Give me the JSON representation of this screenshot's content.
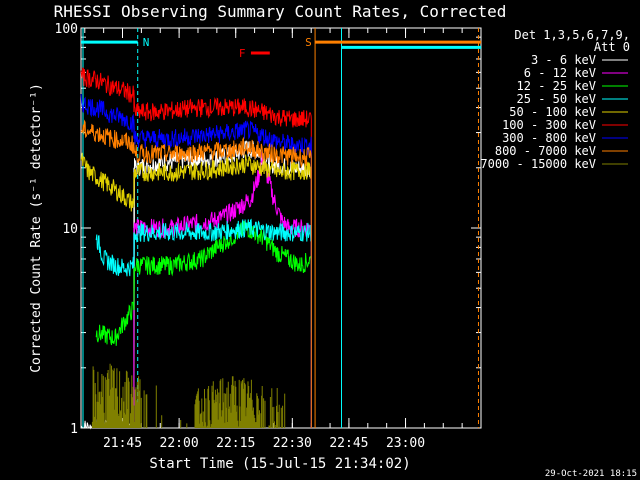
{
  "chart_data": {
    "type": "line",
    "title": "RHESSI Observing Summary Count Rates, Corrected",
    "xlabel": "Start Time (15-Jul-15 21:34:02)",
    "ylabel": "Corrected Count Rate (s⁻¹ detector⁻¹)",
    "yscale": "log",
    "ylim": [
      1,
      100
    ],
    "xlim_minutes": [
      -0.03,
      105.97
    ],
    "x_tick_labels": [
      "21:45",
      "22:00",
      "22:15",
      "22:30",
      "22:45",
      "23:00"
    ],
    "x_tick_minutes": [
      10.97,
      25.97,
      40.97,
      55.97,
      70.97,
      85.97
    ],
    "y_tick_labels": [
      "1",
      "10",
      "100"
    ],
    "legend_header": [
      "Det 1,3,5,6,7,9,",
      "Att 0"
    ],
    "legend_position": "right",
    "grid": false,
    "series": [
      {
        "name": "3 - 6 keV",
        "color": "#ffffff",
        "points": [
          [
            0,
            0
          ],
          [
            14,
            0
          ],
          [
            14,
            20
          ],
          [
            20,
            21
          ],
          [
            28,
            22
          ],
          [
            33,
            22
          ],
          [
            40,
            23
          ],
          [
            44,
            25
          ],
          [
            47,
            24
          ],
          [
            50,
            21
          ],
          [
            55,
            20
          ],
          [
            61,
            20
          ],
          [
            61,
            0
          ]
        ]
      },
      {
        "name": "6 - 12 keV",
        "color": "#ff00ff",
        "points": [
          [
            14,
            1
          ],
          [
            14,
            10
          ],
          [
            24,
            10
          ],
          [
            30,
            10.5
          ],
          [
            36,
            11
          ],
          [
            40,
            12
          ],
          [
            45,
            14
          ],
          [
            47,
            18
          ],
          [
            48,
            22
          ],
          [
            49,
            19
          ],
          [
            51,
            14
          ],
          [
            53,
            11
          ],
          [
            55,
            10
          ],
          [
            61,
            10
          ],
          [
            61,
            3
          ]
        ]
      },
      {
        "name": "12 - 25 keV",
        "color": "#00ff00",
        "points": [
          [
            4,
            3
          ],
          [
            9,
            2.8
          ],
          [
            14,
            4
          ],
          [
            14,
            6.5
          ],
          [
            24,
            6.5
          ],
          [
            32,
            7
          ],
          [
            38,
            8.5
          ],
          [
            44,
            10
          ],
          [
            48,
            9
          ],
          [
            52,
            7.5
          ],
          [
            55,
            7
          ],
          [
            58,
            6.5
          ],
          [
            61,
            7
          ],
          [
            61,
            3
          ]
        ]
      },
      {
        "name": "25 - 50 keV",
        "color": "#00ffff",
        "points": [
          [
            4,
            9
          ],
          [
            6,
            7
          ],
          [
            9,
            6.5
          ],
          [
            12,
            6.3
          ],
          [
            14,
            6.5
          ],
          [
            14,
            9.5
          ],
          [
            24,
            9.5
          ],
          [
            34,
            9.5
          ],
          [
            44,
            10
          ],
          [
            52,
            9.5
          ],
          [
            61,
            9.5
          ],
          [
            61,
            3
          ]
        ]
      },
      {
        "name": "50 - 100 keV",
        "color": "#e0d000",
        "points": [
          [
            0,
            22
          ],
          [
            2,
            19
          ],
          [
            6,
            17
          ],
          [
            10,
            15
          ],
          [
            14,
            13
          ],
          [
            14,
            19
          ],
          [
            24,
            19
          ],
          [
            34,
            19.5
          ],
          [
            44,
            21
          ],
          [
            52,
            19
          ],
          [
            61,
            19.5
          ],
          [
            61,
            11
          ]
        ]
      },
      {
        "name": "100 - 300 keV",
        "color": "#ff0000",
        "points": [
          [
            0,
            57
          ],
          [
            4,
            55
          ],
          [
            8,
            51
          ],
          [
            12,
            48
          ],
          [
            14,
            46
          ],
          [
            14,
            38
          ],
          [
            20,
            38
          ],
          [
            26,
            39
          ],
          [
            32,
            40
          ],
          [
            38,
            40
          ],
          [
            44,
            40
          ],
          [
            48,
            38
          ],
          [
            52,
            36
          ],
          [
            56,
            35
          ],
          [
            61,
            35
          ],
          [
            61,
            0
          ]
        ]
      },
      {
        "name": "300 - 800 keV",
        "color": "#0000ff",
        "points": [
          [
            0,
            42
          ],
          [
            4,
            40
          ],
          [
            8,
            37
          ],
          [
            12,
            35
          ],
          [
            14,
            33
          ],
          [
            14,
            28
          ],
          [
            24,
            28
          ],
          [
            32,
            29
          ],
          [
            40,
            30
          ],
          [
            44,
            31
          ],
          [
            48,
            29
          ],
          [
            52,
            27
          ],
          [
            56,
            26
          ],
          [
            61,
            26
          ],
          [
            61,
            0
          ]
        ]
      },
      {
        "name": "800 - 7000 keV",
        "color": "#ff8000",
        "points": [
          [
            0,
            31
          ],
          [
            4,
            30
          ],
          [
            8,
            28
          ],
          [
            12,
            27
          ],
          [
            14,
            26
          ],
          [
            14,
            23.5
          ],
          [
            24,
            23.5
          ],
          [
            32,
            24
          ],
          [
            40,
            24.5
          ],
          [
            44,
            25.5
          ],
          [
            48,
            24
          ],
          [
            54,
            23
          ],
          [
            61,
            22.5
          ],
          [
            61,
            0
          ]
        ]
      },
      {
        "name": "7000 - 15000 keV",
        "color": "#808000",
        "points": [
          [
            3,
            2
          ],
          [
            8,
            2
          ],
          [
            14,
            1.8
          ],
          [
            30,
            1.5
          ],
          [
            40,
            1.8
          ],
          [
            50,
            1.6
          ],
          [
            55,
            1.5
          ]
        ]
      }
    ],
    "annotations": [
      {
        "label": "N",
        "color": "#00ffff",
        "x0": 0,
        "x1": 15,
        "y": 85
      },
      {
        "label": "F",
        "color": "#ff0000",
        "x0": 45,
        "x1": 50,
        "y": 75
      },
      {
        "label": "S",
        "color": "#ff8000",
        "x0": 62,
        "x1": 106,
        "y": 85
      },
      {
        "label": "",
        "color": "#00ffff",
        "x0": 69,
        "x1": 106,
        "y": 80
      }
    ],
    "vertical_lines": [
      {
        "x": 0.5,
        "color": "#00ffff",
        "style": "solid"
      },
      {
        "x": 15,
        "color": "#00ffff",
        "style": "dashed"
      },
      {
        "x": 62,
        "color": "#ff8000",
        "style": "solid"
      },
      {
        "x": 69,
        "color": "#00ffff",
        "style": "solid"
      },
      {
        "x": 105.3,
        "color": "#ff8000",
        "style": "dashed"
      }
    ]
  },
  "footer": {
    "timestamp": "29-Oct-2021 18:15"
  }
}
